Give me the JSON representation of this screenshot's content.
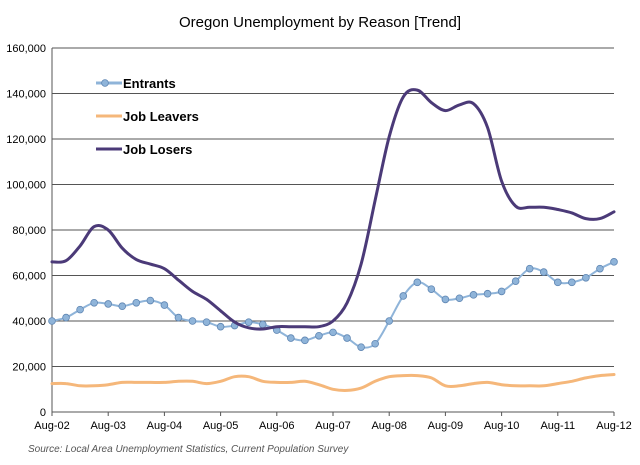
{
  "chart_data": {
    "type": "line",
    "title": "Oregon Unemployment by Reason [Trend]",
    "source": "Source: Local Area Unemployment Statistics, Current Population Survey",
    "ylim": [
      0,
      160000
    ],
    "yticks": [
      0,
      20000,
      40000,
      60000,
      80000,
      100000,
      120000,
      140000,
      160000
    ],
    "ytick_labels": [
      "0",
      "20,000",
      "40,000",
      "60,000",
      "80,000",
      "100,000",
      "120,000",
      "140,000",
      "160,000"
    ],
    "xlim": [
      0,
      10
    ],
    "xticks": [
      0,
      1,
      2,
      3,
      4,
      5,
      6,
      7,
      8,
      9,
      10
    ],
    "xtick_labels": [
      "Aug-02",
      "Aug-03",
      "Aug-04",
      "Aug-05",
      "Aug-06",
      "Aug-07",
      "Aug-08",
      "Aug-09",
      "Aug-10",
      "Aug-11",
      "Aug-12"
    ],
    "grid": "horizontal",
    "legend_position": "top-left",
    "series": [
      {
        "name": "Entrants",
        "color": "#8fb4d9",
        "marker": "circle",
        "x": [
          0,
          0.25,
          0.5,
          0.75,
          1,
          1.25,
          1.5,
          1.75,
          2,
          2.25,
          2.5,
          2.75,
          3,
          3.25,
          3.5,
          3.75,
          4,
          4.25,
          4.5,
          4.75,
          5,
          5.25,
          5.5,
          5.75,
          6,
          6.25,
          6.5,
          6.75,
          7,
          7.25,
          7.5,
          7.75,
          8,
          8.25,
          8.5,
          8.75,
          9,
          9.25,
          9.5,
          9.75,
          10
        ],
        "values": [
          40000,
          41500,
          45000,
          48000,
          47500,
          46500,
          48000,
          49000,
          47000,
          41500,
          40000,
          39500,
          37500,
          38000,
          39500,
          38500,
          36000,
          32500,
          31500,
          33500,
          35000,
          32500,
          28500,
          30000,
          40000,
          51000,
          57000,
          54000,
          49500,
          50000,
          51500,
          52000,
          53000,
          57500,
          63000,
          61500,
          57000,
          57000,
          59000,
          63000,
          66000
        ]
      },
      {
        "name": "Job Leavers",
        "color": "#f5b77a",
        "marker": "none",
        "x": [
          0,
          0.25,
          0.5,
          0.75,
          1,
          1.25,
          1.5,
          1.75,
          2,
          2.25,
          2.5,
          2.75,
          3,
          3.25,
          3.5,
          3.75,
          4,
          4.25,
          4.5,
          4.75,
          5,
          5.25,
          5.5,
          5.75,
          6,
          6.25,
          6.5,
          6.75,
          7,
          7.25,
          7.5,
          7.75,
          8,
          8.25,
          8.5,
          8.75,
          9,
          9.25,
          9.5,
          9.75,
          10
        ],
        "values": [
          12500,
          12500,
          11500,
          11500,
          12000,
          13000,
          13000,
          13000,
          13000,
          13500,
          13500,
          12500,
          13500,
          15500,
          15500,
          13500,
          13000,
          13000,
          13500,
          12000,
          10000,
          9500,
          10500,
          13500,
          15500,
          16000,
          16000,
          15000,
          11500,
          11500,
          12500,
          13000,
          12000,
          11500,
          11500,
          11500,
          12500,
          13500,
          15000,
          16000,
          16500
        ]
      },
      {
        "name": "Job Losers",
        "color": "#4b3a78",
        "marker": "none",
        "x": [
          0,
          0.25,
          0.5,
          0.75,
          1,
          1.25,
          1.5,
          1.75,
          2,
          2.25,
          2.5,
          2.75,
          3,
          3.25,
          3.5,
          3.75,
          4,
          4.25,
          4.5,
          4.75,
          5,
          5.25,
          5.5,
          5.75,
          6,
          6.25,
          6.5,
          6.75,
          7,
          7.25,
          7.5,
          7.75,
          8,
          8.25,
          8.5,
          8.75,
          9,
          9.25,
          9.5,
          9.75,
          10
        ],
        "values": [
          66000,
          66500,
          73000,
          81500,
          80000,
          72000,
          67000,
          65000,
          63000,
          58000,
          53000,
          49500,
          44500,
          39500,
          37000,
          36500,
          37500,
          37500,
          37500,
          37500,
          40000,
          48000,
          65000,
          93000,
          121000,
          138500,
          141500,
          136000,
          132500,
          135000,
          135500,
          125000,
          101500,
          90500,
          90000,
          90000,
          89000,
          87500,
          85000,
          85000,
          88000
        ]
      }
    ]
  }
}
